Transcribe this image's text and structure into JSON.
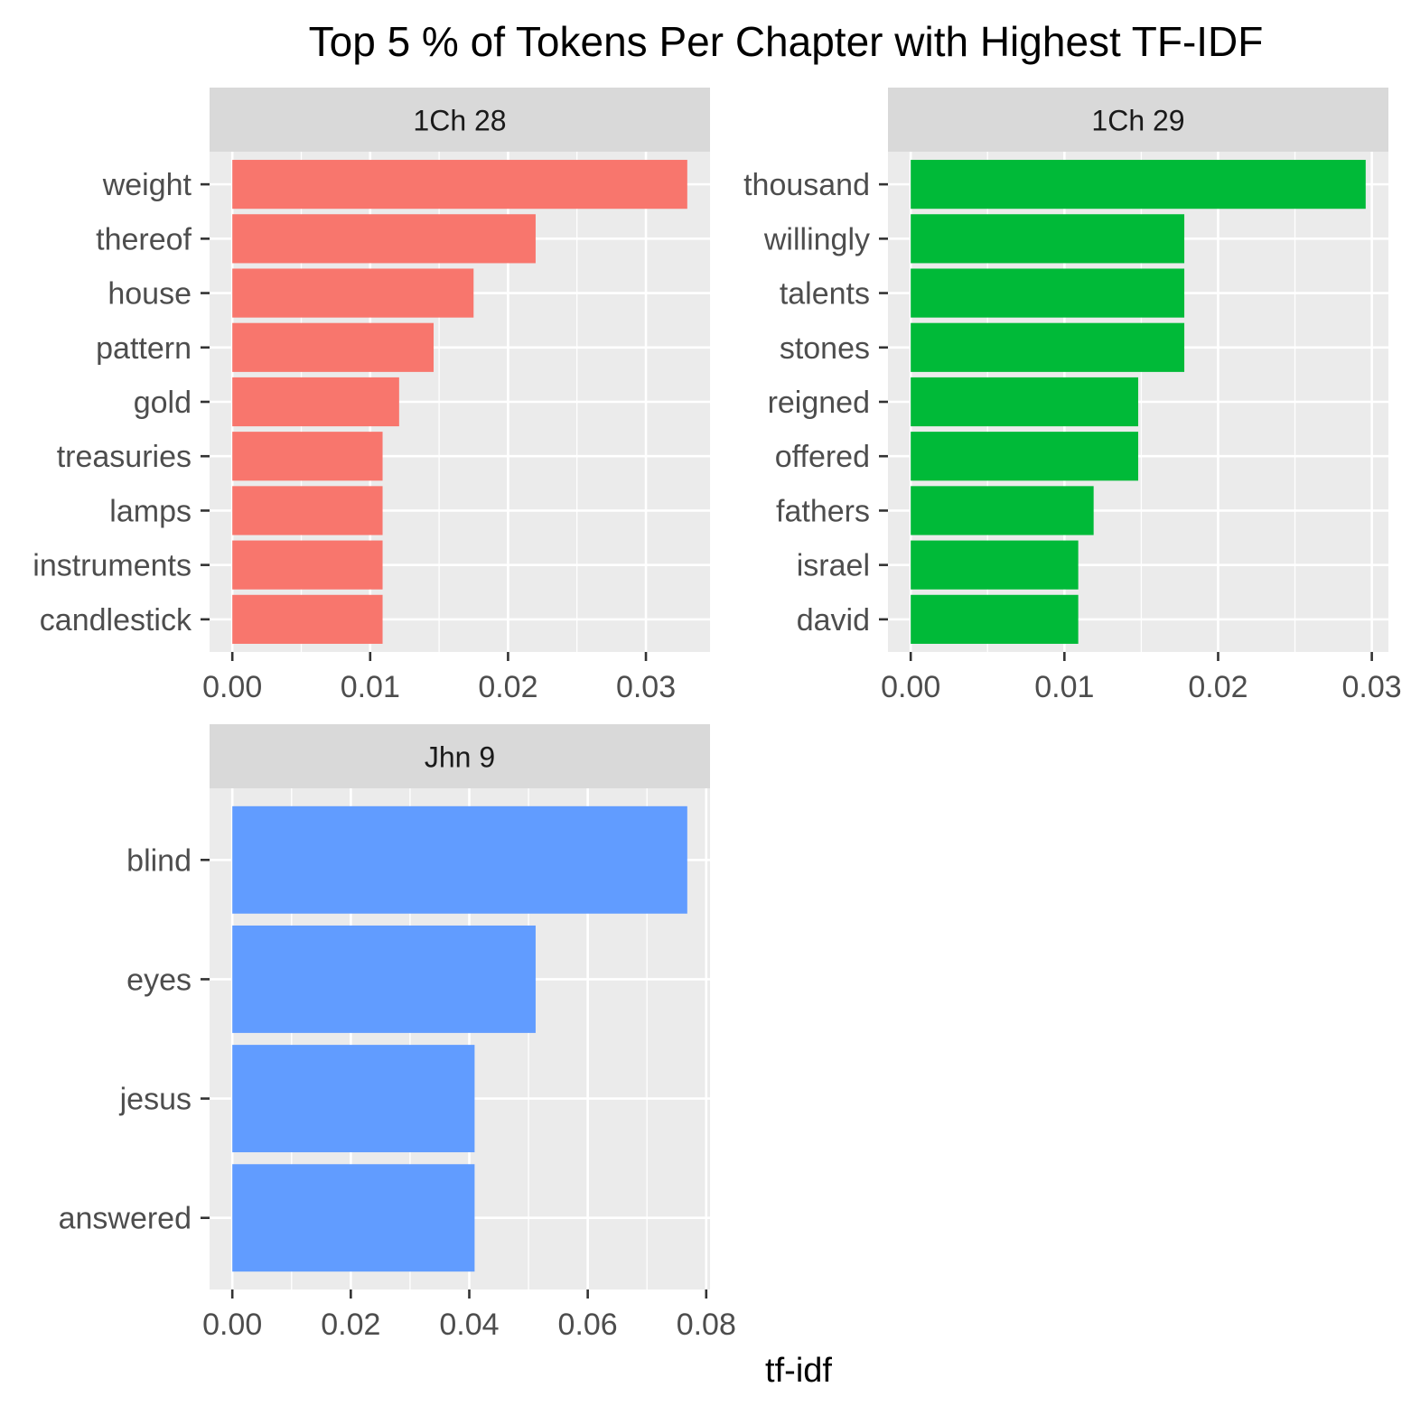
{
  "title": "Top 5 % of Tokens Per Chapter with Highest TF-IDF",
  "xlabel": "tf-idf",
  "colors": {
    "panel_bg": "#EBEBEB",
    "strip_bg": "#D9D9D9",
    "grid": "#FFFFFF",
    "tick_text": "#4D4D4D",
    "strip_text": "#1A1A1A"
  },
  "chart_data": [
    {
      "type": "bar",
      "orientation": "horizontal",
      "facet": "1Ch 28",
      "color": "#F8766D",
      "categories": [
        "weight",
        "thereof",
        "house",
        "pattern",
        "gold",
        "treasuries",
        "lamps",
        "instruments",
        "candlestick"
      ],
      "values": [
        0.033,
        0.022,
        0.0175,
        0.0146,
        0.0121,
        0.0109,
        0.0109,
        0.0109,
        0.0109
      ],
      "xlim": [
        -0.00165,
        0.03465
      ],
      "xticks": [
        0,
        0.01,
        0.02,
        0.03
      ],
      "xtick_labels": [
        "0.00",
        "0.01",
        "0.02",
        "0.03"
      ],
      "grid": true
    },
    {
      "type": "bar",
      "orientation": "horizontal",
      "facet": "1Ch 29",
      "color": "#00BA38",
      "categories": [
        "thousand",
        "willingly",
        "talents",
        "stones",
        "reigned",
        "offered",
        "fathers",
        "israel",
        "david"
      ],
      "values": [
        0.0296,
        0.0178,
        0.0178,
        0.0178,
        0.0148,
        0.0148,
        0.0119,
        0.0109,
        0.0109
      ],
      "xlim": [
        -0.00148,
        0.03108
      ],
      "xticks": [
        0,
        0.01,
        0.02,
        0.03
      ],
      "xtick_labels": [
        "0.00",
        "0.01",
        "0.02",
        "0.03"
      ],
      "grid": true
    },
    {
      "type": "bar",
      "orientation": "horizontal",
      "facet": "Jhn 9",
      "color": "#619CFF",
      "categories": [
        "blind",
        "eyes",
        "jesus",
        "answered"
      ],
      "values": [
        0.0768,
        0.0512,
        0.0409,
        0.0409
      ],
      "xlim": [
        -0.00384,
        0.08064
      ],
      "xticks": [
        0,
        0.02,
        0.04,
        0.06,
        0.08
      ],
      "xtick_labels": [
        "0.00",
        "0.02",
        "0.04",
        "0.06",
        "0.08"
      ],
      "grid": true
    }
  ]
}
